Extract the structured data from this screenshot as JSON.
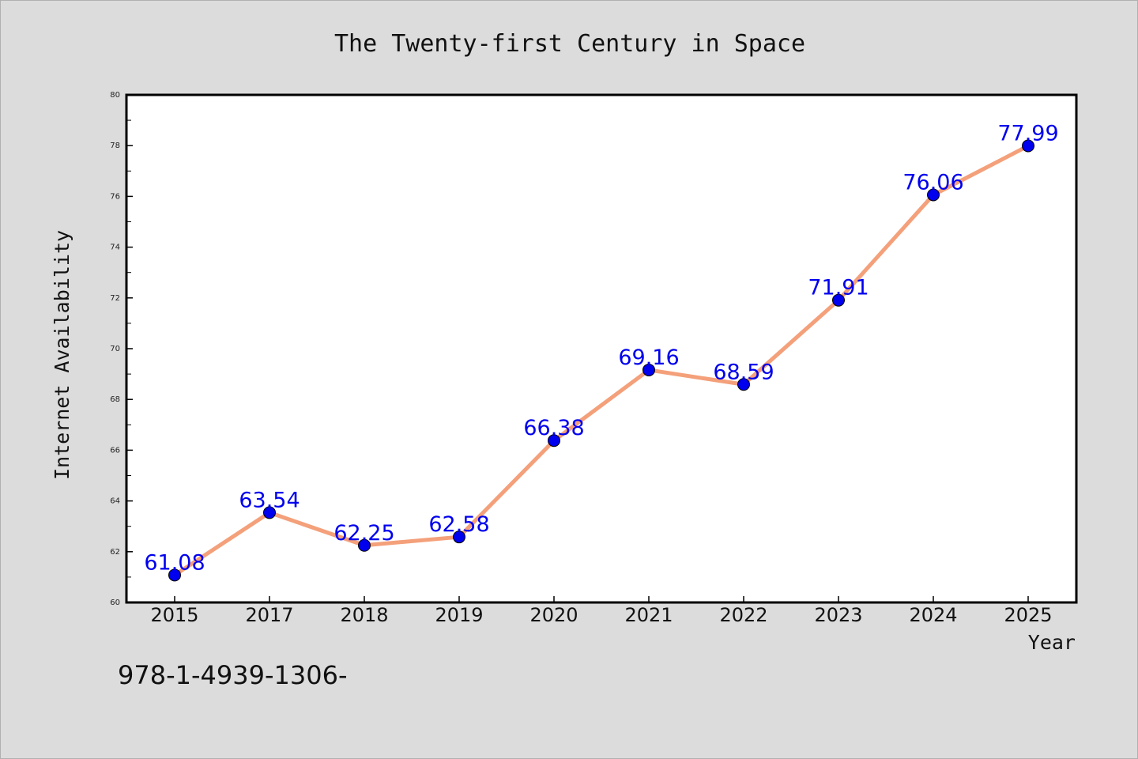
{
  "chart_data": {
    "type": "line",
    "title": "The Twenty-first Century in Space",
    "xlabel": "Year",
    "ylabel": "Internet Availability",
    "categories": [
      "2015",
      "2017",
      "2018",
      "2019",
      "2020",
      "2021",
      "2022",
      "2023",
      "2024",
      "2025"
    ],
    "series": [
      {
        "values": [
          61.08,
          63.54,
          62.25,
          62.58,
          66.38,
          69.16,
          68.59,
          71.91,
          76.06,
          77.99
        ],
        "data_labels": [
          "61.08",
          "63.54",
          "62.25",
          "62.58",
          "66.38",
          "69.16",
          "68.59",
          "71.91",
          "76.06",
          "77.99"
        ],
        "line_color": "#f4a07a",
        "marker_color": "#0000ee",
        "label_color": "#0000ee"
      }
    ],
    "ylim": [
      60,
      80
    ],
    "yticks": [
      "60",
      "62",
      "64",
      "66",
      "68",
      "70",
      "72",
      "74",
      "76",
      "78",
      "80"
    ],
    "grid": false,
    "legend": "none"
  },
  "footnote": "978-1-4939-1306-"
}
